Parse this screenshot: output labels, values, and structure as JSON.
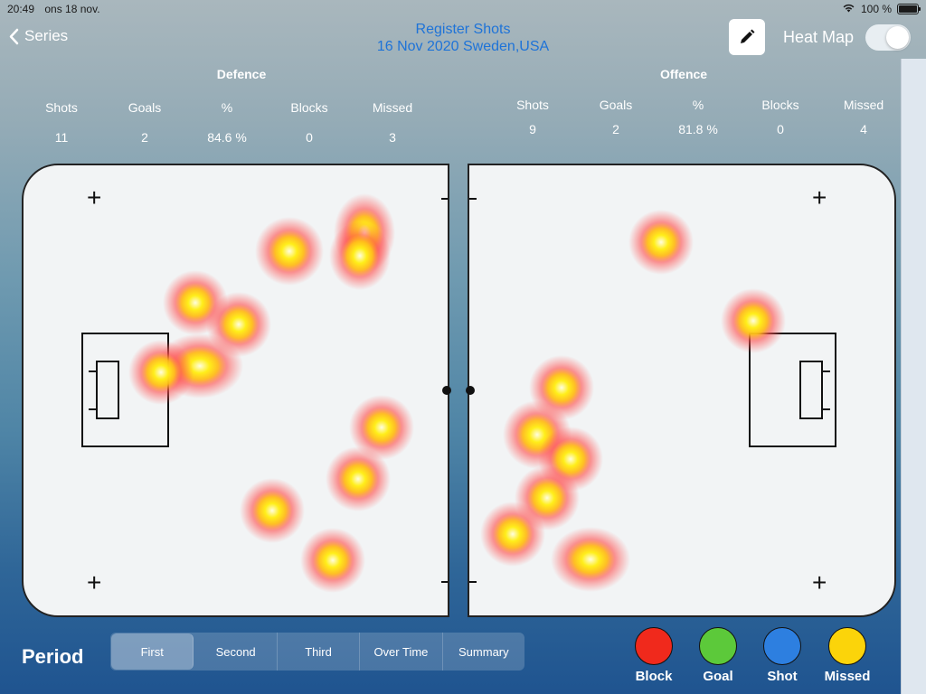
{
  "status_bar": {
    "time": "20:49",
    "date": "ons 18 nov.",
    "battery": "100 %"
  },
  "nav": {
    "back_label": "Series",
    "title_line1": "Register Shots",
    "title_line2": "16 Nov 2020  Sweden,USA",
    "heatmap_label": "Heat Map",
    "heatmap_on": false
  },
  "defence": {
    "title": "Defence",
    "headers": [
      "Shots",
      "Goals",
      "%",
      "Blocks",
      "Missed"
    ],
    "values": [
      "11",
      "2",
      "84.6 %",
      "0",
      "3"
    ]
  },
  "offence": {
    "title": "Offence",
    "headers": [
      "Shots",
      "Goals",
      "%",
      "Blocks",
      "Missed"
    ],
    "values": [
      "9",
      "2",
      "81.8 %",
      "0",
      "4"
    ]
  },
  "period": {
    "label": "Period",
    "tabs": [
      "First",
      "Second",
      "Third",
      "Over Time",
      "Summary"
    ],
    "selected": "First"
  },
  "legend": [
    {
      "label": "Block",
      "color": "#f0291c"
    },
    {
      "label": "Goal",
      "color": "#5cc93a"
    },
    {
      "label": "Shot",
      "color": "#2d7fe0"
    },
    {
      "label": "Missed",
      "color": "#fbd40a"
    }
  ]
}
